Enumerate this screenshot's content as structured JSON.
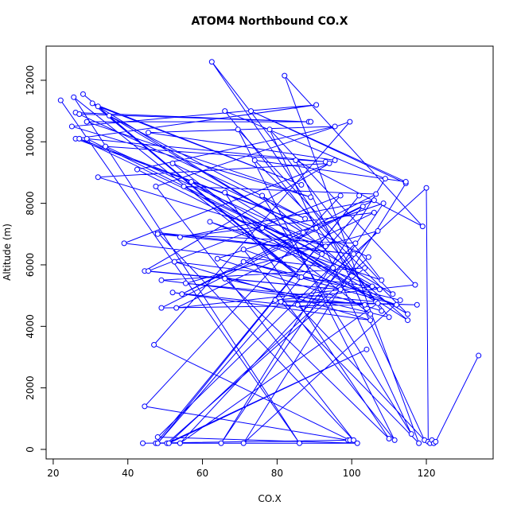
{
  "chart_data": {
    "type": "line",
    "title": "ATOM4 Northbound CO.X",
    "xlabel": "CO.X",
    "ylabel": "Altitude (m)",
    "color": "#0000ff",
    "markers": true,
    "xlim": [
      18.1,
      137.9
    ],
    "ylim": [
      -310,
      13110
    ],
    "xticks": [
      20,
      40,
      60,
      80,
      100,
      120
    ],
    "yticks": [
      0,
      2000,
      4000,
      6000,
      8000,
      10000,
      12000
    ],
    "x": [
      22,
      86,
      25.5,
      86,
      28,
      86.5,
      30.5,
      86.5,
      32,
      87,
      35,
      87.5,
      26,
      88.5,
      27,
      89,
      29,
      89,
      25,
      90.5,
      26,
      90.5,
      27,
      92,
      29,
      93,
      34,
      93,
      32,
      94,
      39,
      95,
      42.5,
      95.5,
      45.5,
      95.5,
      44.5,
      97,
      45.5,
      97,
      44.5,
      99,
      44,
      99.5,
      47,
      99.5,
      47.5,
      100.5,
      48,
      100.5,
      48,
      101,
      48,
      101.5,
      47.5,
      102,
      48,
      103,
      49,
      103.5,
      49,
      103.5,
      50.5,
      104,
      51,
      104.5,
      52,
      105,
      52,
      105,
      52.5,
      105.5,
      53,
      106,
      54,
      106,
      54.5,
      106.5,
      55,
      106.5,
      55.5,
      107,
      54,
      107,
      57,
      107.5,
      62,
      108,
      62.5,
      108,
      64,
      108.5,
      65,
      109,
      66,
      110,
      66,
      110,
      66,
      111,
      69.5,
      111.5,
      71,
      112,
      71,
      113,
      71,
      114.5,
      73,
      114.5,
      74,
      115,
      76,
      115,
      76,
      116,
      78,
      117,
      79.5,
      117.5,
      81,
      118,
      82,
      119,
      85,
      119.5,
      85.5,
      120,
      120.5,
      121,
      121.5,
      122,
      122.5,
      134
    ],
    "values": [
      11350,
      200,
      11450,
      5600,
      11550,
      5600,
      11250,
      8600,
      11150,
      7050,
      10850,
      7500,
      10950,
      10650,
      10900,
      10650,
      10650,
      8200,
      10500,
      11200,
      10100,
      7200,
      10100,
      6350,
      10100,
      9350,
      9850,
      6600,
      8850,
      9300,
      6700,
      5900,
      9100,
      10500,
      10300,
      9400,
      5800,
      5200,
      5800,
      8250,
      1400,
      300,
      200,
      300,
      3400,
      10650,
      8550,
      300,
      7050,
      6350,
      7000,
      6700,
      400,
      200,
      200,
      8250,
      200,
      7900,
      4600,
      4700,
      5500,
      5900,
      200,
      3250,
      200,
      6250,
      9300,
      4400,
      5100,
      4200,
      6100,
      5300,
      4600,
      7700,
      6900,
      8100,
      5050,
      8300,
      8550,
      4800,
      5400,
      7100,
      200,
      4750,
      8700,
      5200,
      7400,
      5500,
      12600,
      4500,
      6200,
      8000,
      200,
      8800,
      11000,
      4300,
      5550,
      350,
      8350,
      5050,
      10400,
      300,
      6500,
      4700,
      6100,
      4850,
      200,
      8650,
      11000,
      8700,
      9400,
      4400,
      7200,
      4200,
      8250,
      500,
      10400,
      5350,
      4850,
      4700,
      4800,
      200,
      12150,
      7250,
      9400,
      300,
      4700,
      8500,
      250,
      200,
      300,
      200,
      250,
      3050
    ]
  }
}
